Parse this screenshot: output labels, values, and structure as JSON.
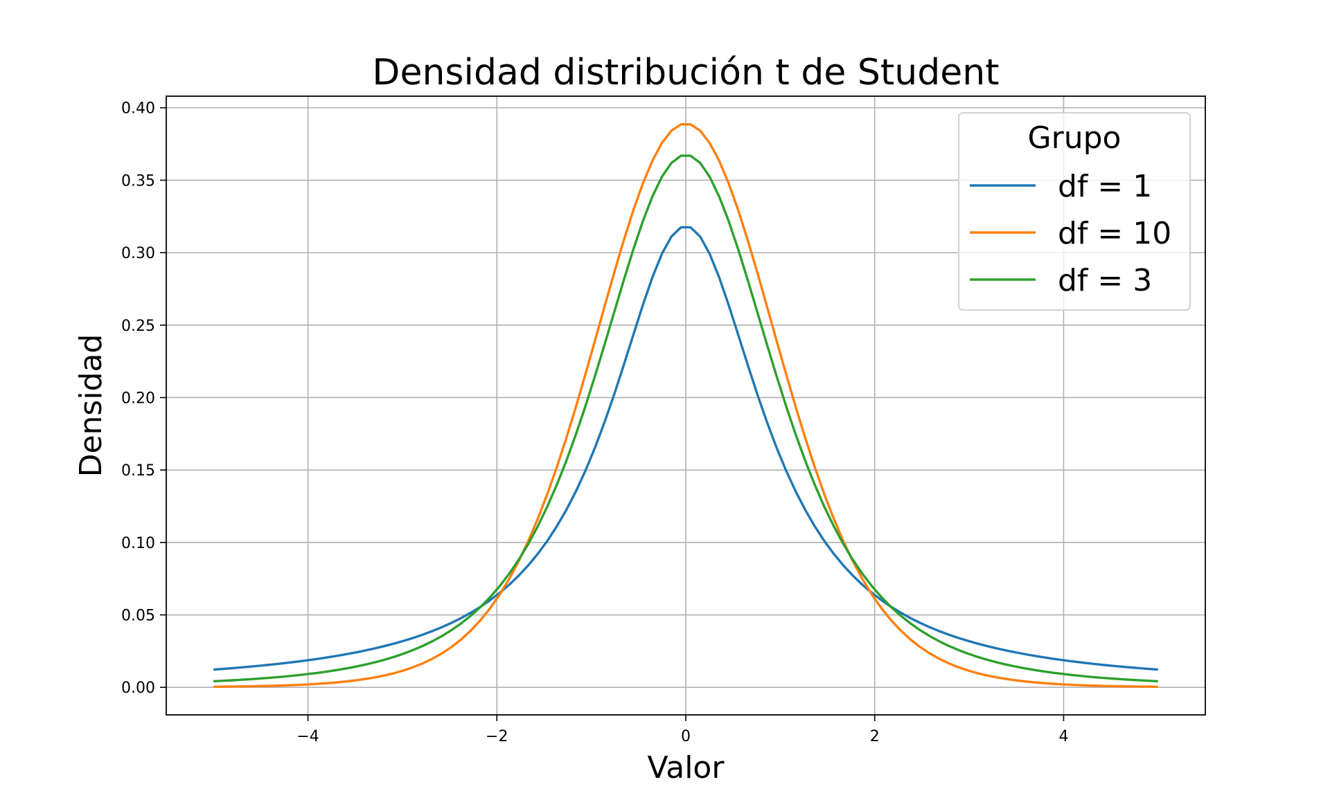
{
  "chart_data": {
    "type": "line",
    "title": "Densidad distribución t de Student",
    "xlabel": "Valor",
    "ylabel": "Densidad",
    "xlim": [
      -5.5,
      5.5
    ],
    "ylim": [
      -0.019,
      0.408
    ],
    "xticks": [
      -4,
      -2,
      0,
      2,
      4
    ],
    "xtick_labels": [
      "−4",
      "−2",
      "0",
      "2",
      "4"
    ],
    "yticks": [
      0.0,
      0.05,
      0.1,
      0.15,
      0.2,
      0.25,
      0.3,
      0.35,
      0.4
    ],
    "ytick_labels": [
      "0.00",
      "0.05",
      "0.10",
      "0.15",
      "0.20",
      "0.25",
      "0.30",
      "0.35",
      "0.40"
    ],
    "grid": true,
    "legend": {
      "title": "Grupo",
      "placement": "top-right"
    },
    "x_range": [
      -5,
      5
    ],
    "series": [
      {
        "name": "df = 1",
        "df": 1,
        "color": "#1f77b4",
        "peak": 0.318,
        "values_at_ticks": {
          "-4": 0.019,
          "-2": 0.064,
          "0": 0.318,
          "2": 0.064,
          "4": 0.019,
          "-5": 0.012,
          "5": 0.012
        }
      },
      {
        "name": "df = 10",
        "df": 10,
        "color": "#ff7f0e",
        "peak": 0.389,
        "values_at_ticks": {
          "-4": 0.002,
          "-2": 0.061,
          "0": 0.389,
          "2": 0.061,
          "4": 0.002,
          "-5": 0.0004,
          "5": 0.0004
        }
      },
      {
        "name": "df = 3",
        "df": 3,
        "color": "#2ca02c",
        "peak": 0.368,
        "values_at_ticks": {
          "-4": 0.009,
          "-2": 0.068,
          "0": 0.368,
          "2": 0.068,
          "4": 0.009,
          "-5": 0.004,
          "5": 0.004
        }
      }
    ]
  }
}
